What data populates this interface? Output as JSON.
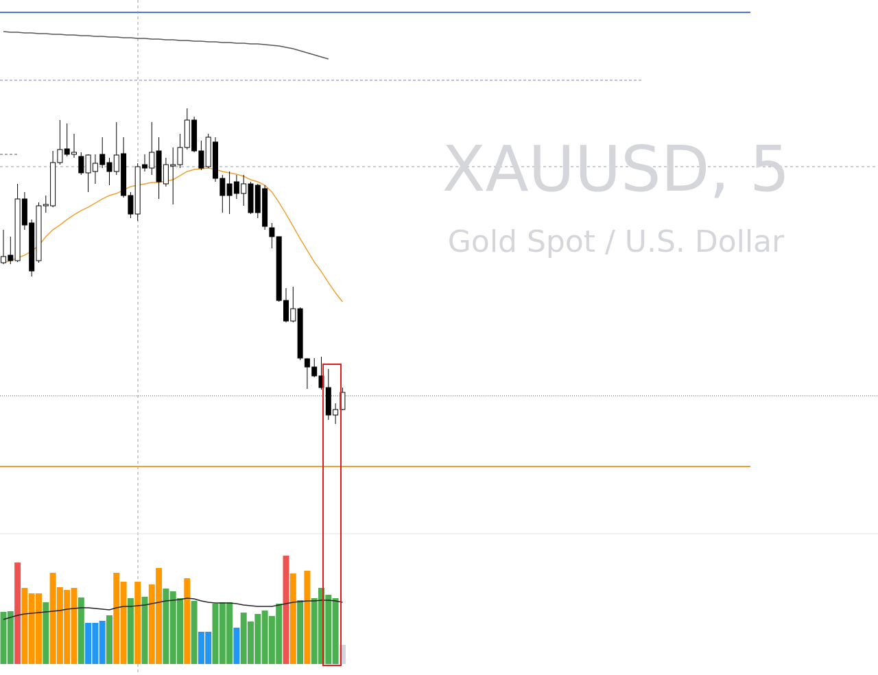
{
  "chart_data": {
    "type": "candlestick",
    "title": "XAUUSD, 5",
    "subtitle": "Gold Spot / U.S. Dollar",
    "up_color": "#ffffff",
    "down_color": "#000000",
    "ylim": [
      0,
      775
    ],
    "open": [
      392,
      403,
      395,
      485,
      450,
      395,
      475,
      475,
      538,
      558,
      550,
      547,
      523,
      525,
      550,
      538,
      525,
      551,
      490,
      463,
      535,
      530,
      555,
      507,
      533,
      535,
      560,
      600,
      555,
      532,
      568,
      515,
      507,
      510,
      493,
      507,
      505,
      500,
      443,
      430,
      337,
      307,
      325,
      252,
      240,
      227,
      210,
      170,
      178
    ],
    "high": [
      440,
      430,
      507,
      495,
      455,
      480,
      490,
      555,
      600,
      595,
      580,
      553,
      550,
      550,
      575,
      545,
      597,
      575,
      495,
      537,
      550,
      597,
      575,
      545,
      560,
      580,
      617,
      605,
      570,
      580,
      575,
      520,
      525,
      520,
      520,
      510,
      507,
      505,
      450,
      430,
      355,
      357,
      327,
      253,
      253,
      255,
      237,
      187,
      210
    ],
    "low": [
      390,
      390,
      393,
      440,
      372,
      392,
      465,
      473,
      535,
      547,
      545,
      520,
      495,
      507,
      530,
      505,
      520,
      487,
      457,
      453,
      525,
      520,
      485,
      503,
      477,
      530,
      557,
      553,
      527,
      530,
      510,
      465,
      463,
      485,
      475,
      463,
      457,
      440,
      413,
      335,
      305,
      305,
      250,
      208,
      225,
      207,
      163,
      157,
      177
    ],
    "close": [
      401,
      395,
      485,
      447,
      380,
      475,
      477,
      538,
      557,
      550,
      553,
      523,
      549,
      537,
      535,
      525,
      549,
      490,
      463,
      532,
      530,
      553,
      510,
      535,
      535,
      560,
      600,
      555,
      530,
      575,
      515,
      490,
      490,
      493,
      507,
      465,
      465,
      445,
      430,
      337,
      307,
      325,
      253,
      240,
      227,
      210,
      170,
      178,
      203
    ],
    "lines": [
      {
        "color": "#f0a030",
        "values": [
          392,
          395,
          399,
          403,
          409,
          417,
          430,
          440,
          447,
          455,
          462,
          468,
          473,
          479,
          485,
          490,
          493,
          498,
          503,
          505,
          507,
          509,
          509,
          511,
          513,
          519,
          525,
          528,
          529,
          530,
          528,
          525,
          523,
          521,
          518,
          513,
          510,
          505,
          495,
          480,
          463,
          445,
          427,
          410,
          393,
          379,
          363,
          348,
          335
        ]
      },
      {
        "color": "#555555",
        "values": [
          729,
          728,
          728,
          727,
          727,
          726,
          726,
          725,
          725,
          724,
          724,
          723,
          723,
          722,
          722,
          721,
          721,
          720,
          720,
          719,
          719,
          718,
          718,
          717,
          717,
          716,
          716,
          715,
          715,
          714,
          714,
          713,
          713,
          712,
          712,
          711,
          711,
          710,
          709,
          708,
          706,
          704,
          701,
          698,
          695,
          692,
          689,
          null,
          null
        ]
      }
    ],
    "volume": {
      "ylim": [
        0,
        190
      ],
      "values": [
        76,
        77,
        148,
        111,
        103,
        103,
        90,
        133,
        112,
        108,
        111,
        97,
        60,
        60,
        63,
        71,
        133,
        120,
        96,
        120,
        98,
        116,
        140,
        110,
        106,
        96,
        125,
        92,
        47,
        47,
        88,
        90,
        90,
        53,
        75,
        62,
        73,
        78,
        70,
        88,
        158,
        132,
        93,
        136,
        96,
        111,
        101,
        96,
        28
      ],
      "colors": [
        "#4caf50",
        "#4caf50",
        "#ef5350",
        "#ff9800",
        "#ff9800",
        "#ff9800",
        "#4caf50",
        "#ff9800",
        "#ff9800",
        "#ff9800",
        "#ff9800",
        "#4caf50",
        "#2196f3",
        "#2196f3",
        "#2196f3",
        "#4caf50",
        "#ff9800",
        "#ff9800",
        "#4caf50",
        "#ff9800",
        "#4caf50",
        "#ff9800",
        "#ff9800",
        "#4caf50",
        "#4caf50",
        "#4caf50",
        "#ff9800",
        "#4caf50",
        "#2196f3",
        "#2196f3",
        "#4caf50",
        "#4caf50",
        "#4caf50",
        "#2196f3",
        "#4caf50",
        "#4caf50",
        "#4caf50",
        "#4caf50",
        "#4caf50",
        "#4caf50",
        "#ef5350",
        "#ff9800",
        "#4caf50",
        "#ff9800",
        "#4caf50",
        "#4caf50",
        "#4caf50",
        "#4caf50",
        "#d1d4dc"
      ],
      "ma": {
        "color": "#222222",
        "values": [
          65,
          68,
          71,
          73,
          74,
          75,
          76,
          77,
          78,
          80,
          81,
          82,
          82,
          81,
          80,
          79,
          82,
          84,
          84,
          85,
          86,
          88,
          90,
          92,
          93,
          94,
          96,
          95,
          92,
          90,
          89,
          89,
          89,
          88,
          86,
          85,
          84,
          84,
          84,
          86,
          88,
          90,
          91,
          92,
          92,
          93,
          93,
          92,
          90
        ]
      }
    }
  }
}
